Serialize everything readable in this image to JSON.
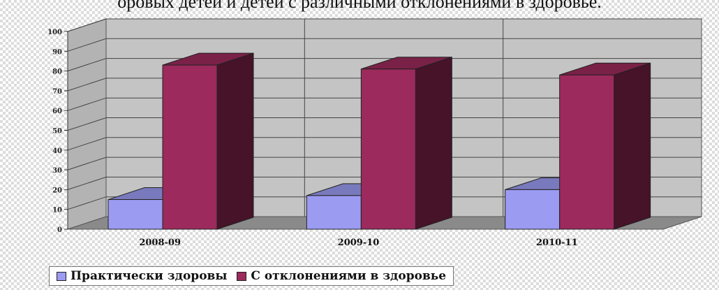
{
  "caption": "оровых детей и детей с различными отклонениями в здоровье.",
  "chart_data": {
    "type": "bar",
    "categories": [
      "2008-09",
      "2009-10",
      "2010-11"
    ],
    "series": [
      {
        "name": "Практически здоровы",
        "values": [
          15,
          17,
          20
        ],
        "color": "#9b9bf2"
      },
      {
        "name": "С отклонениями в здоровье",
        "values": [
          83,
          81,
          78
        ],
        "color": "#9c2a5c"
      }
    ],
    "ylim": [
      0,
      100
    ],
    "yticks": [
      0,
      10,
      20,
      30,
      40,
      50,
      60,
      70,
      80,
      90,
      100
    ],
    "grid": true,
    "legend_position": "bottom-left",
    "style": "3d-bar"
  }
}
